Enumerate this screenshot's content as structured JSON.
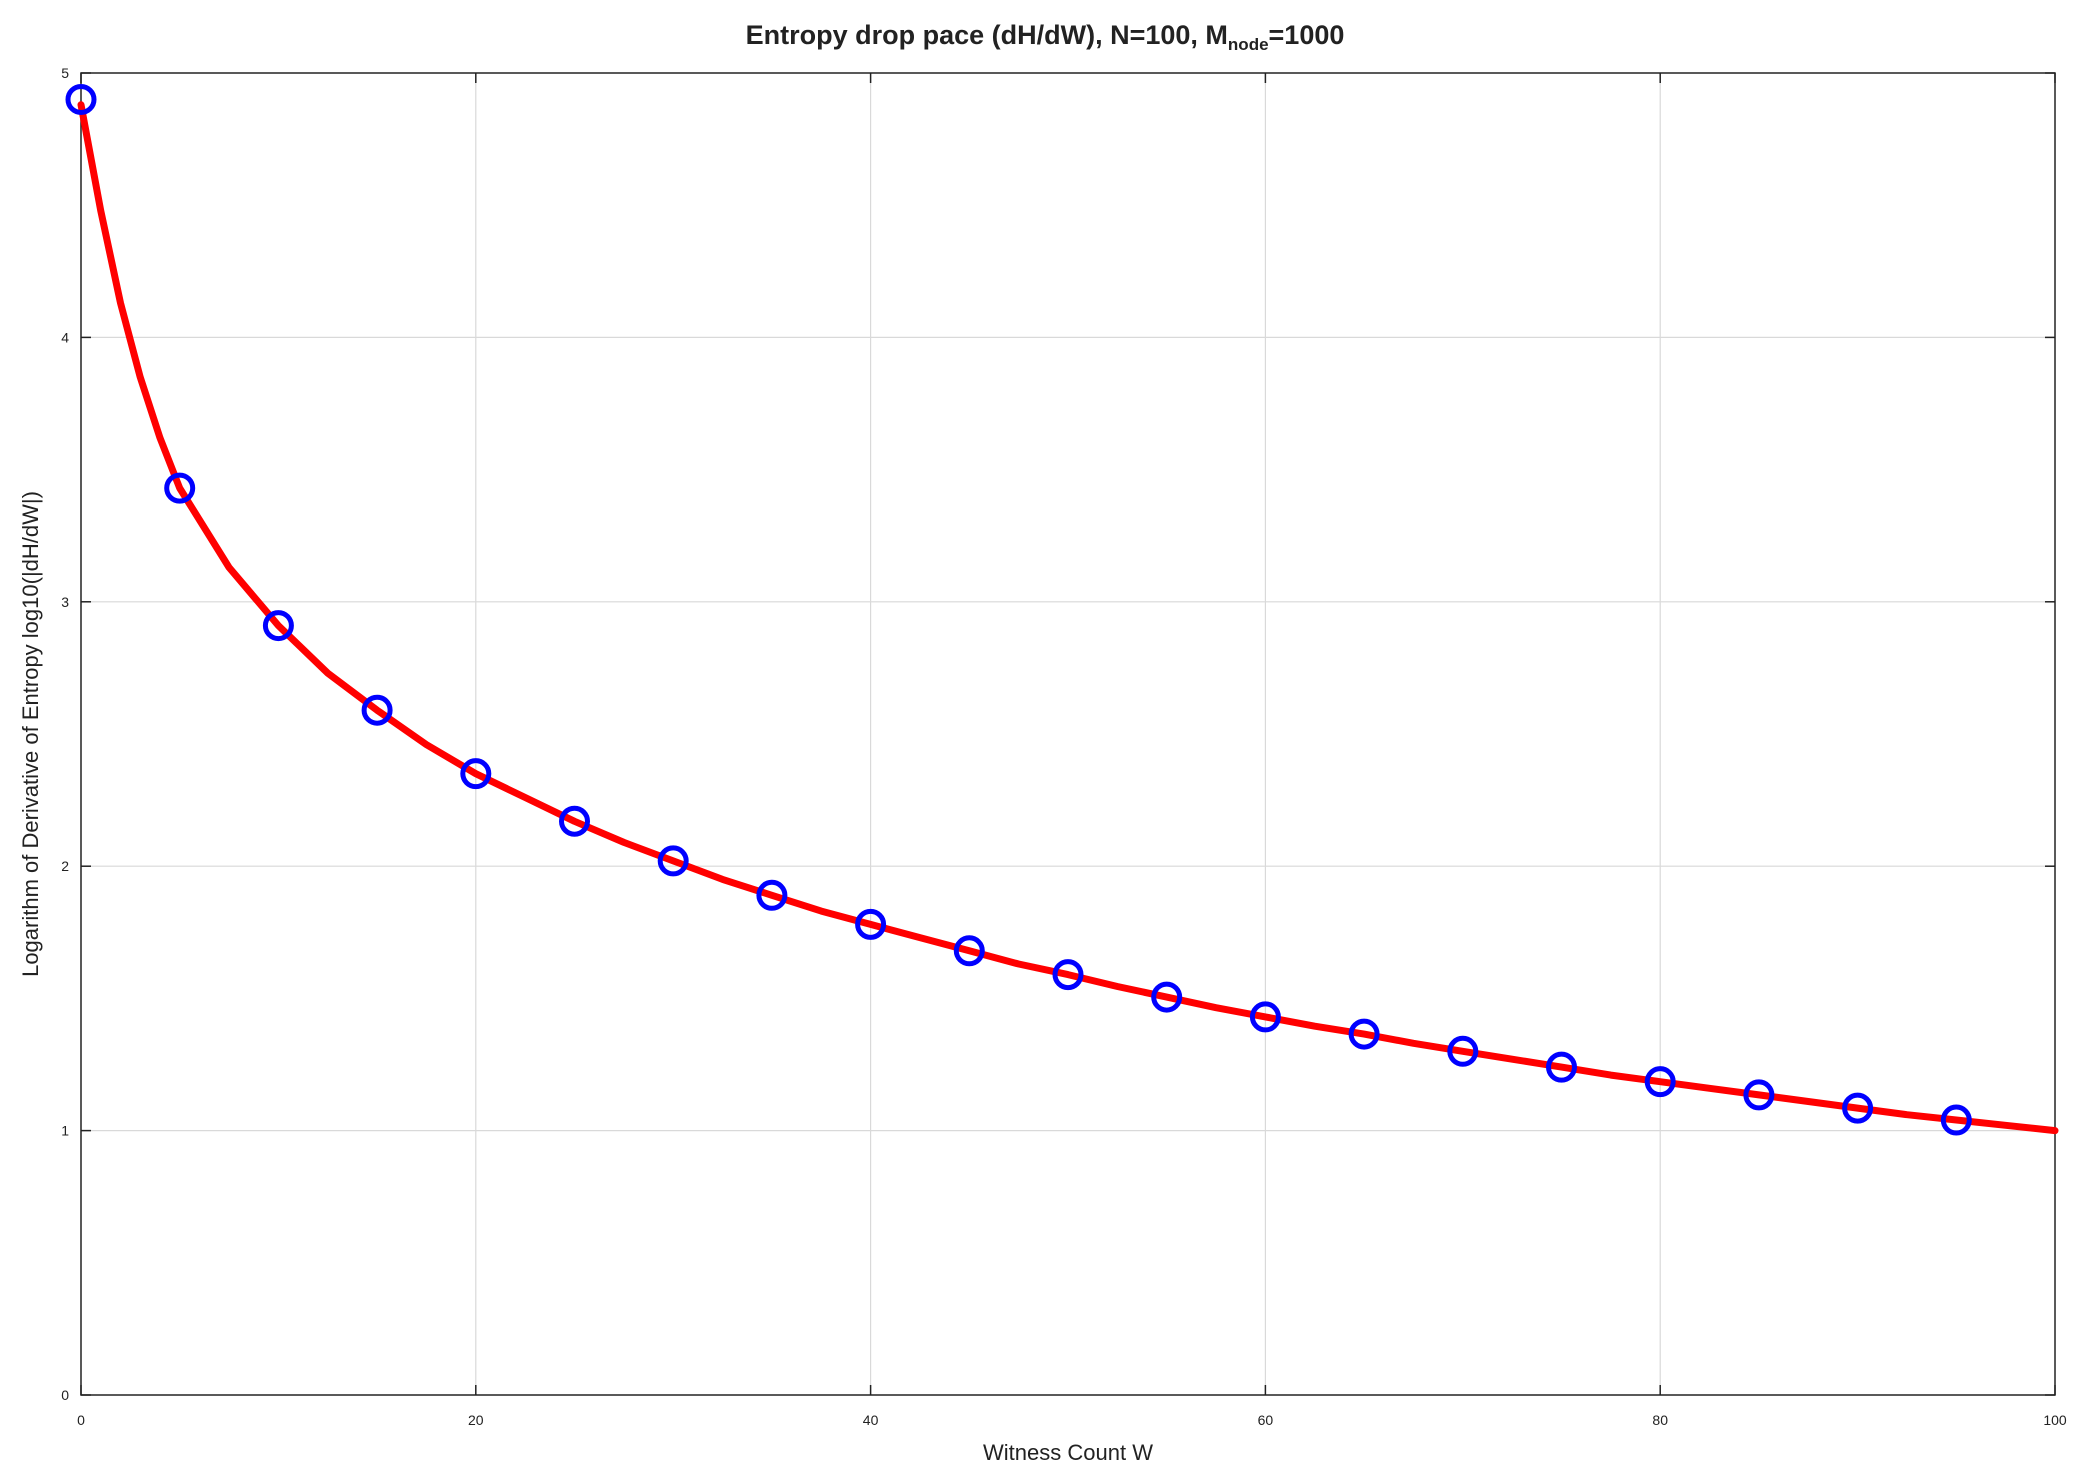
{
  "chart_data": {
    "type": "line",
    "title": "Entropy drop pace (dH/dW), N=100, M",
    "title_sub": "node",
    "title_suffix": "=1000",
    "xlabel": "Witness Count W",
    "ylabel": "Logarithm of Derivative of Entropy log10(|dH/dW|)",
    "xlim": [
      0,
      100
    ],
    "ylim": [
      0,
      5
    ],
    "xticks": [
      0,
      20,
      40,
      60,
      80,
      100
    ],
    "yticks": [
      0,
      1,
      2,
      3,
      4,
      5
    ],
    "grid": true,
    "series": [
      {
        "style": "solid line",
        "color": "#ff0000",
        "x": [
          0,
          1,
          2,
          3,
          4,
          5,
          7.5,
          10,
          12.5,
          15,
          17.5,
          20,
          22.5,
          25,
          27.5,
          30,
          32.5,
          35,
          37.5,
          40,
          42.5,
          45,
          47.5,
          50,
          52.5,
          55,
          57.5,
          60,
          62.5,
          65,
          67.5,
          70,
          72.5,
          75,
          77.5,
          80,
          82.5,
          85,
          87.5,
          90,
          92.5,
          95,
          97.5,
          100
        ],
        "y": [
          4.88,
          4.48,
          4.13,
          3.85,
          3.62,
          3.43,
          3.13,
          2.91,
          2.73,
          2.59,
          2.46,
          2.35,
          2.26,
          2.17,
          2.09,
          2.02,
          1.95,
          1.89,
          1.83,
          1.78,
          1.73,
          1.68,
          1.63,
          1.59,
          1.545,
          1.505,
          1.465,
          1.43,
          1.395,
          1.365,
          1.33,
          1.3,
          1.27,
          1.24,
          1.21,
          1.185,
          1.16,
          1.135,
          1.11,
          1.085,
          1.06,
          1.04,
          1.02,
          1.0
        ]
      },
      {
        "style": "circle markers",
        "color": "#0000ff",
        "x": [
          0,
          5,
          10,
          15,
          20,
          25,
          30,
          35,
          40,
          45,
          50,
          55,
          60,
          65,
          70,
          75,
          80,
          85,
          90,
          95
        ],
        "y": [
          4.9,
          3.43,
          2.91,
          2.59,
          2.35,
          2.17,
          2.02,
          1.89,
          1.78,
          1.68,
          1.59,
          1.505,
          1.43,
          1.365,
          1.3,
          1.24,
          1.185,
          1.135,
          1.085,
          1.04
        ]
      }
    ]
  }
}
